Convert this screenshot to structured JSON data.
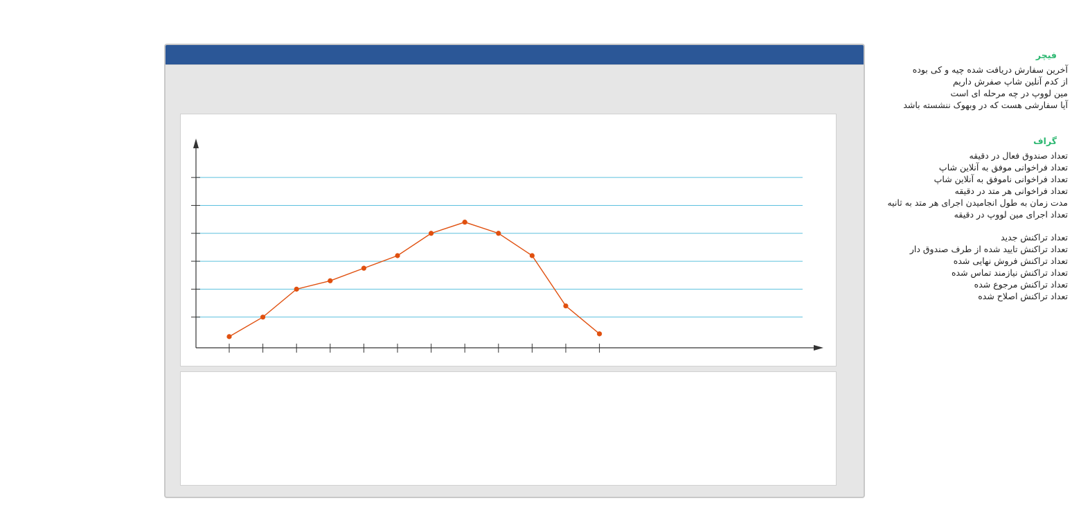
{
  "feature": {
    "title": "فیچر",
    "items": [
      "آخرین سفارش دریافت شده چیه و کی بوده",
      "از کدم آنلین شاپ صفرش داریم",
      "مین لووپ در چه مرحله ای است",
      "آیا سفارشی هست که در وبهوک ننشسته باشد"
    ]
  },
  "graph": {
    "title": "گراف",
    "items": [
      "تعداد صندوق فعال در دقیقه",
      "تعداد فراخوانی موفق به آنلاین شاپ",
      "تعداد فراخوانی ناموفق به آنلاین شاپ",
      "تعداد فراخوانی هر متد در دقیقه",
      "مدت زمان به طول انجامیدن اجرای هر متد به ثانیه",
      "تعداد اجرای مین لووپ در دقیقه"
    ],
    "transaction_items": [
      "تعداد تراکنش جدید",
      "تعداد تراکنش تایید شده از طرف صندوق دار",
      "تعداد تراکنش فروش نهایی شده",
      "تعداد تراکنش نیازمند تماس شده",
      "تعداد تراکنش مرجوع شده",
      "تعداد تراکنش اصلاح شده"
    ]
  },
  "colors": {
    "titlebar": "#2b5797",
    "series": "#e0500f",
    "gridline": "#5bc0de",
    "section_title": "#2eb872"
  },
  "chart_data": {
    "type": "line",
    "x": [
      1,
      2,
      3,
      4,
      5,
      6,
      7,
      8,
      9,
      10,
      11,
      12
    ],
    "series": [
      {
        "values": [
          0.3,
          1.0,
          2.0,
          2.3,
          2.75,
          3.2,
          4.0,
          4.4,
          4.0,
          3.2,
          1.4,
          0.4
        ]
      }
    ],
    "ylim": [
      -0.1,
      6
    ],
    "y_gridlines": [
      1,
      2,
      3,
      4,
      5,
      6
    ],
    "grid": true
  }
}
